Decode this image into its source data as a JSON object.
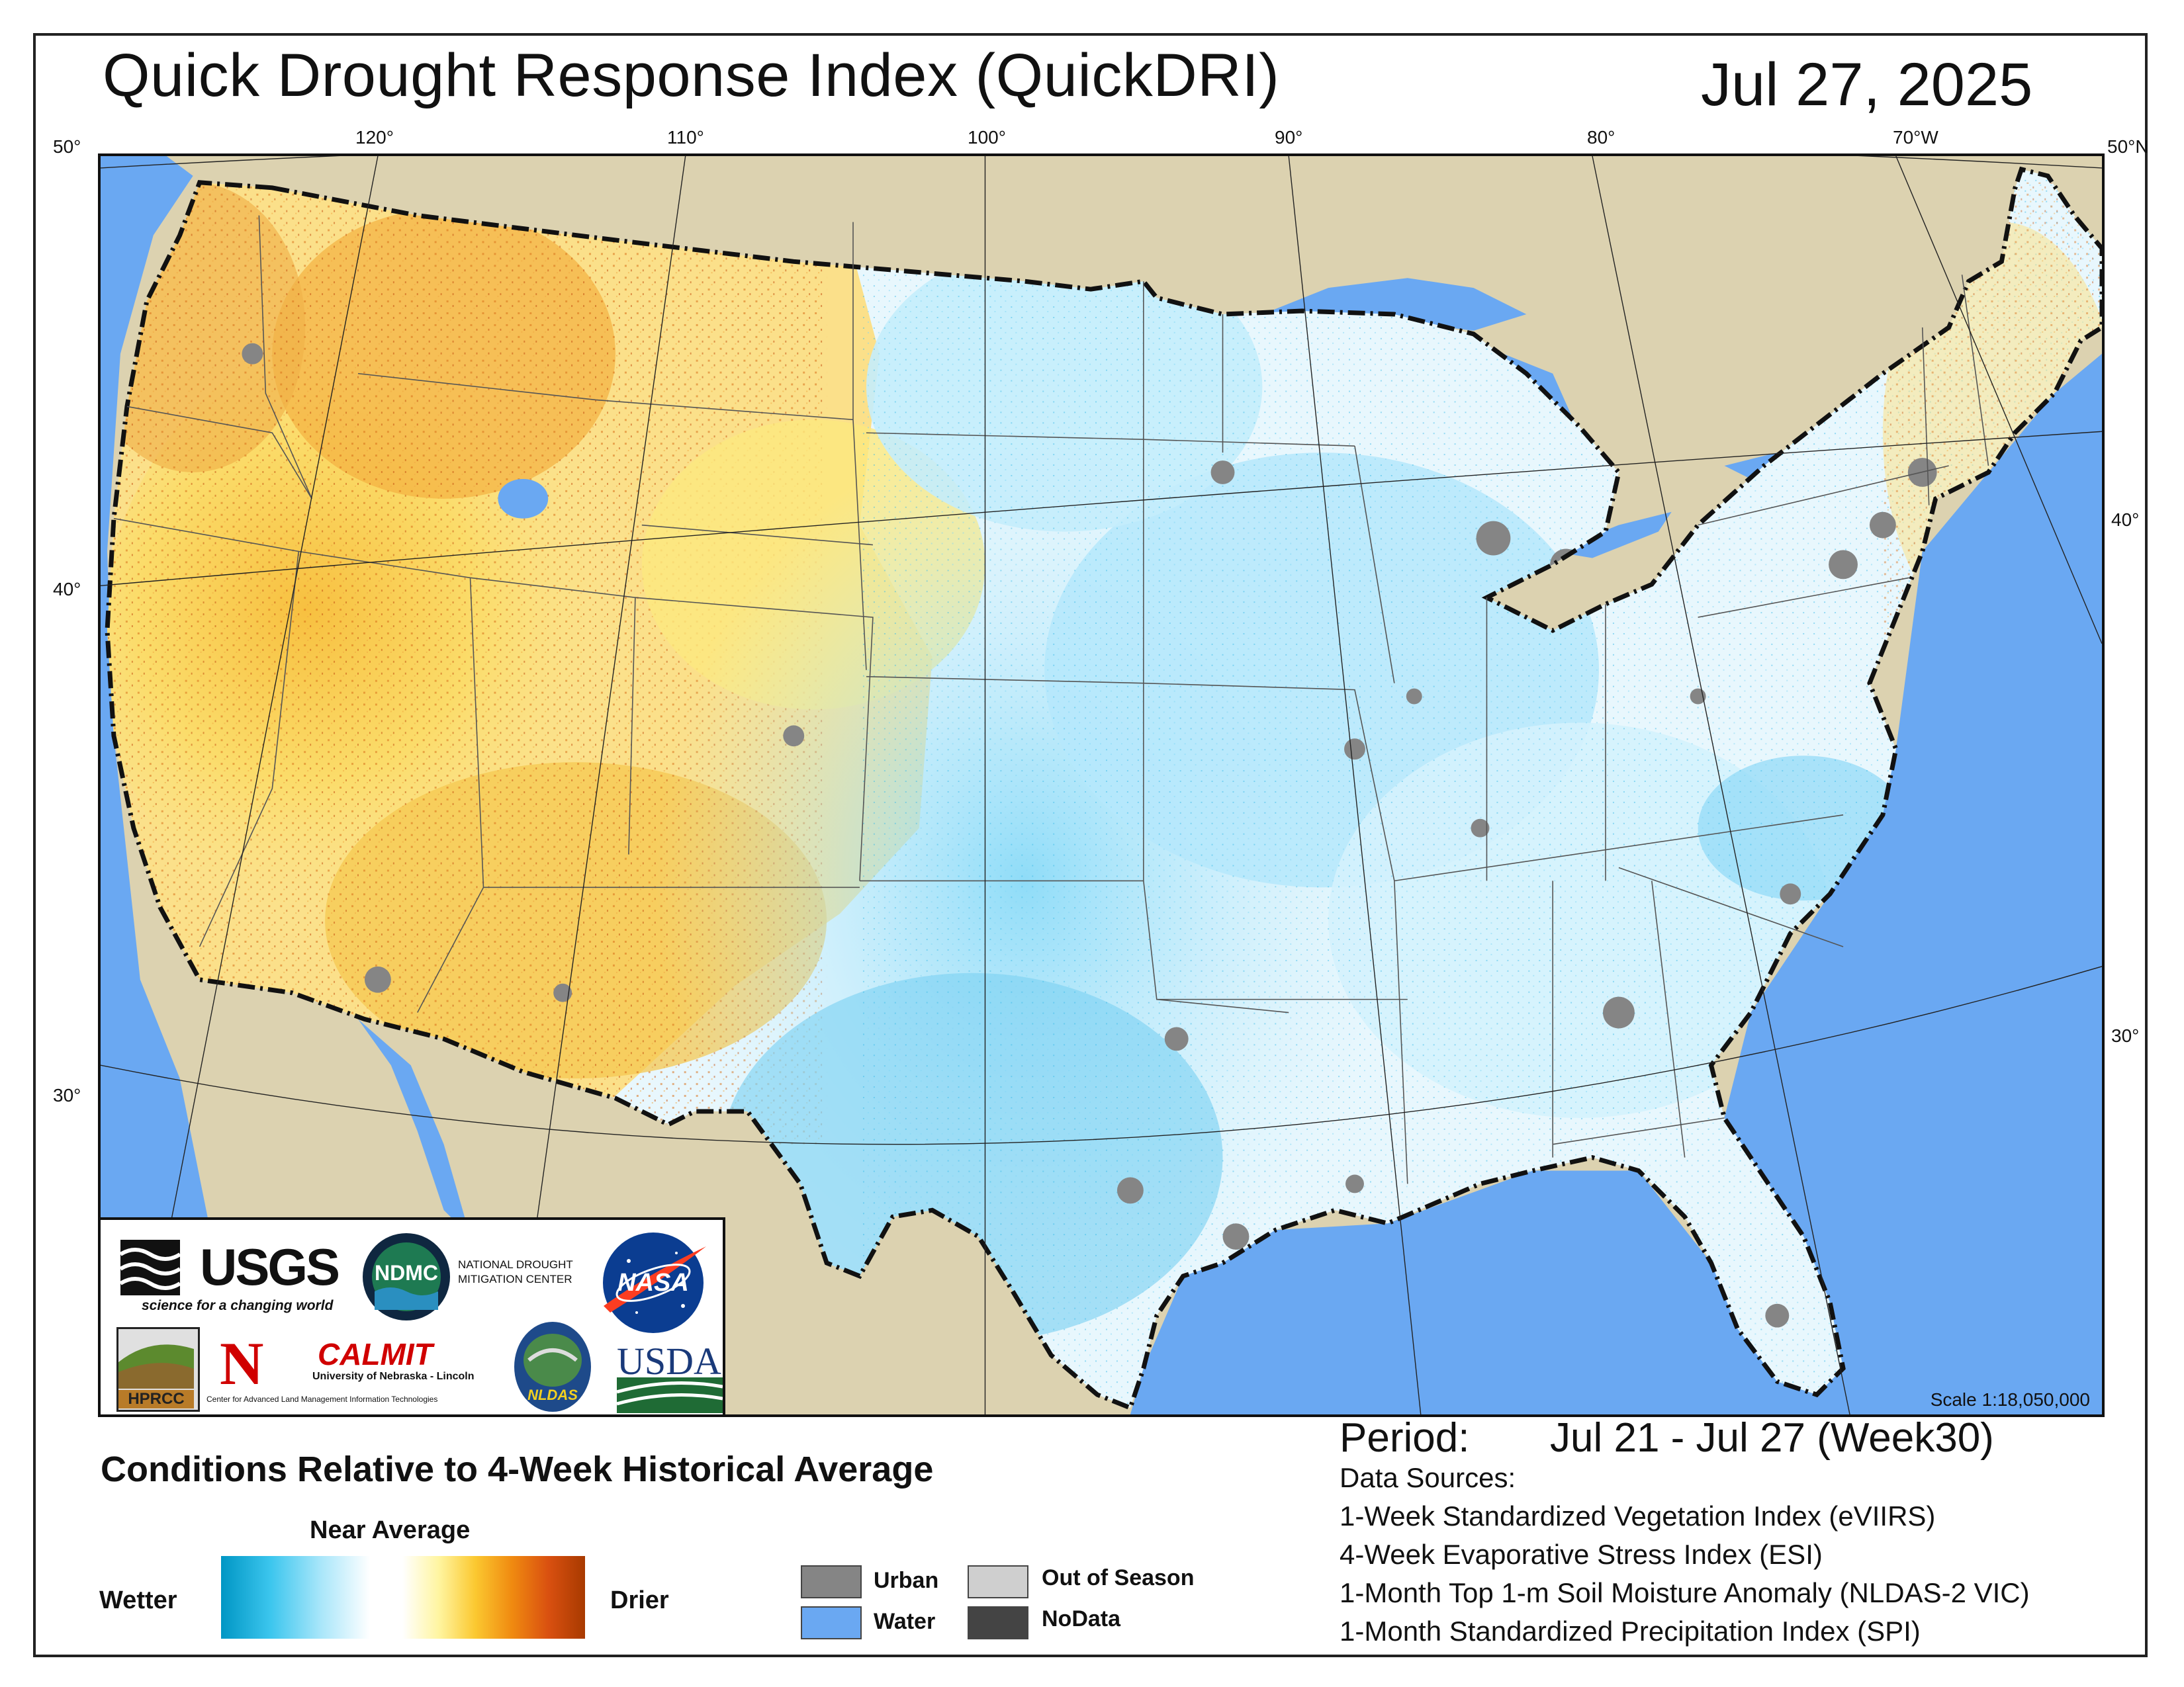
{
  "header": {
    "title": "Quick Drought Response Index (QuickDRI)",
    "date": "Jul 27, 2025"
  },
  "map": {
    "longitude_labels": [
      "120°",
      "110°",
      "100°",
      "90°",
      "80°",
      "70°W"
    ],
    "latitude_labels_left": [
      "50°",
      "40°",
      "30°"
    ],
    "latitude_labels_right": [
      "50°N",
      "40°",
      "30°"
    ],
    "scale": "Scale 1:18,050,000",
    "colors": {
      "land_outside": "#dcd2b0",
      "water": "#6aa8f2",
      "wet_light": "#bfe9fb",
      "near_average": "#ffffff",
      "dry_yellow": "#fbe47a",
      "dry_orange": "#f0a640",
      "dry_red": "#c8500f"
    }
  },
  "logos": {
    "usgs": "USGS",
    "usgs_tagline": "science for a changing world",
    "ndmc": "NDMC",
    "ndmc_name_1": "NATIONAL DROUGHT",
    "ndmc_name_2": "MITIGATION CENTER",
    "nasa": "NASA",
    "hprcc": "HPRCC",
    "unl": "N",
    "calmit": "CALMIT",
    "calmit_univ": "University of Nebraska - Lincoln",
    "calmit_center": "Center for Advanced Land Management Information Technologies",
    "nldas": "NLDAS",
    "usda": "USDA"
  },
  "legend": {
    "heading": "Conditions Relative to 4-Week Historical Average",
    "near_average": "Near Average",
    "wetter": "Wetter",
    "drier": "Drier",
    "swatches": [
      {
        "label": "Urban",
        "color": "#858585"
      },
      {
        "label": "Water",
        "color": "#6aa8f2"
      },
      {
        "label": "Out of Season",
        "color": "#cfcfcf"
      },
      {
        "label": "NoData",
        "color": "#444444"
      }
    ]
  },
  "period": {
    "label": "Period:",
    "value": "Jul 21 - Jul 27 (Week30)"
  },
  "data_sources": {
    "heading": "Data Sources:",
    "items": [
      "1-Week Standardized Vegetation Index (eVIIRS)",
      "4-Week Evaporative Stress Index (ESI)",
      "1-Month Top 1-m Soil Moisture Anomaly (NLDAS-2 VIC)",
      "1-Month Standardized Precipitation Index (SPI)"
    ]
  }
}
